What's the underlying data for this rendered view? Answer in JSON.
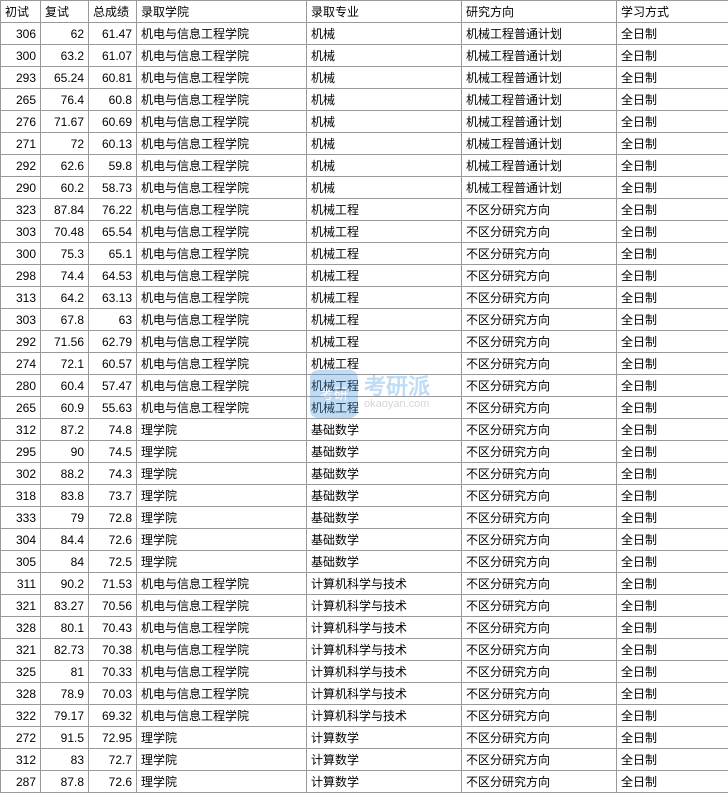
{
  "table": {
    "columns": [
      "初试",
      "复试",
      "总成绩",
      "录取学院",
      "录取专业",
      "研究方向",
      "学习方式"
    ],
    "column_classes": [
      "col-chushi",
      "col-fushi",
      "col-zongchengji",
      "col-xueyuan",
      "col-zhuanye",
      "col-fangxiang",
      "col-xuexifangshi"
    ],
    "rows": [
      [
        "306",
        "62",
        "61.47",
        "机电与信息工程学院",
        "机械",
        "机械工程普通计划",
        "全日制"
      ],
      [
        "300",
        "63.2",
        "61.07",
        "机电与信息工程学院",
        "机械",
        "机械工程普通计划",
        "全日制"
      ],
      [
        "293",
        "65.24",
        "60.81",
        "机电与信息工程学院",
        "机械",
        "机械工程普通计划",
        "全日制"
      ],
      [
        "265",
        "76.4",
        "60.8",
        "机电与信息工程学院",
        "机械",
        "机械工程普通计划",
        "全日制"
      ],
      [
        "276",
        "71.67",
        "60.69",
        "机电与信息工程学院",
        "机械",
        "机械工程普通计划",
        "全日制"
      ],
      [
        "271",
        "72",
        "60.13",
        "机电与信息工程学院",
        "机械",
        "机械工程普通计划",
        "全日制"
      ],
      [
        "292",
        "62.6",
        "59.8",
        "机电与信息工程学院",
        "机械",
        "机械工程普通计划",
        "全日制"
      ],
      [
        "290",
        "60.2",
        "58.73",
        "机电与信息工程学院",
        "机械",
        "机械工程普通计划",
        "全日制"
      ],
      [
        "323",
        "87.84",
        "76.22",
        "机电与信息工程学院",
        "机械工程",
        "不区分研究方向",
        "全日制"
      ],
      [
        "303",
        "70.48",
        "65.54",
        "机电与信息工程学院",
        "机械工程",
        "不区分研究方向",
        "全日制"
      ],
      [
        "300",
        "75.3",
        "65.1",
        "机电与信息工程学院",
        "机械工程",
        "不区分研究方向",
        "全日制"
      ],
      [
        "298",
        "74.4",
        "64.53",
        "机电与信息工程学院",
        "机械工程",
        "不区分研究方向",
        "全日制"
      ],
      [
        "313",
        "64.2",
        "63.13",
        "机电与信息工程学院",
        "机械工程",
        "不区分研究方向",
        "全日制"
      ],
      [
        "303",
        "67.8",
        "63",
        "机电与信息工程学院",
        "机械工程",
        "不区分研究方向",
        "全日制"
      ],
      [
        "292",
        "71.56",
        "62.79",
        "机电与信息工程学院",
        "机械工程",
        "不区分研究方向",
        "全日制"
      ],
      [
        "274",
        "72.1",
        "60.57",
        "机电与信息工程学院",
        "机械工程",
        "不区分研究方向",
        "全日制"
      ],
      [
        "280",
        "60.4",
        "57.47",
        "机电与信息工程学院",
        "机械工程",
        "不区分研究方向",
        "全日制"
      ],
      [
        "265",
        "60.9",
        "55.63",
        "机电与信息工程学院",
        "机械工程",
        "不区分研究方向",
        "全日制"
      ],
      [
        "312",
        "87.2",
        "74.8",
        "理学院",
        "基础数学",
        "不区分研究方向",
        "全日制"
      ],
      [
        "295",
        "90",
        "74.5",
        "理学院",
        "基础数学",
        "不区分研究方向",
        "全日制"
      ],
      [
        "302",
        "88.2",
        "74.3",
        "理学院",
        "基础数学",
        "不区分研究方向",
        "全日制"
      ],
      [
        "318",
        "83.8",
        "73.7",
        "理学院",
        "基础数学",
        "不区分研究方向",
        "全日制"
      ],
      [
        "333",
        "79",
        "72.8",
        "理学院",
        "基础数学",
        "不区分研究方向",
        "全日制"
      ],
      [
        "304",
        "84.4",
        "72.6",
        "理学院",
        "基础数学",
        "不区分研究方向",
        "全日制"
      ],
      [
        "305",
        "84",
        "72.5",
        "理学院",
        "基础数学",
        "不区分研究方向",
        "全日制"
      ],
      [
        "311",
        "90.2",
        "71.53",
        "机电与信息工程学院",
        "计算机科学与技术",
        "不区分研究方向",
        "全日制"
      ],
      [
        "321",
        "83.27",
        "70.56",
        "机电与信息工程学院",
        "计算机科学与技术",
        "不区分研究方向",
        "全日制"
      ],
      [
        "328",
        "80.1",
        "70.43",
        "机电与信息工程学院",
        "计算机科学与技术",
        "不区分研究方向",
        "全日制"
      ],
      [
        "321",
        "82.73",
        "70.38",
        "机电与信息工程学院",
        "计算机科学与技术",
        "不区分研究方向",
        "全日制"
      ],
      [
        "325",
        "81",
        "70.33",
        "机电与信息工程学院",
        "计算机科学与技术",
        "不区分研究方向",
        "全日制"
      ],
      [
        "328",
        "78.9",
        "70.03",
        "机电与信息工程学院",
        "计算机科学与技术",
        "不区分研究方向",
        "全日制"
      ],
      [
        "322",
        "79.17",
        "69.32",
        "机电与信息工程学院",
        "计算机科学与技术",
        "不区分研究方向",
        "全日制"
      ],
      [
        "272",
        "91.5",
        "72.95",
        "理学院",
        "计算数学",
        "不区分研究方向",
        "全日制"
      ],
      [
        "312",
        "83",
        "72.7",
        "理学院",
        "计算数学",
        "不区分研究方向",
        "全日制"
      ],
      [
        "287",
        "87.8",
        "72.6",
        "理学院",
        "计算数学",
        "不区分研究方向",
        "全日制"
      ]
    ],
    "border_color": "#999999",
    "background_color": "#ffffff",
    "text_color": "#000000",
    "font_size": 12
  },
  "watermark": {
    "logo_text": "考研",
    "brand_text": "考研派",
    "domain_text": "okaoyan.com",
    "logo_bg": "#4a9de0",
    "text_color": "#4a9de0",
    "opacity": 0.35
  }
}
